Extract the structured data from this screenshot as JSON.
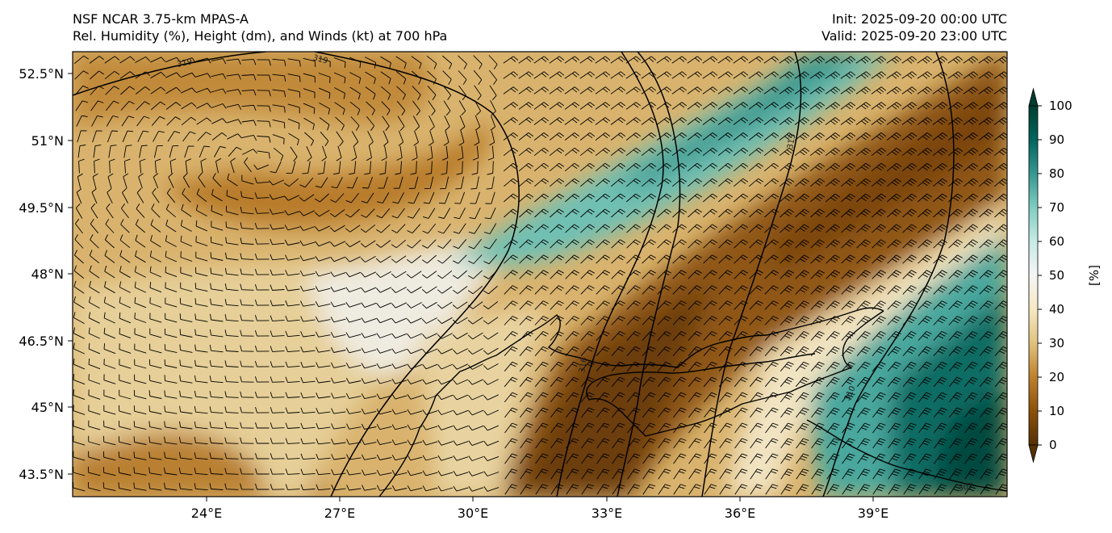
{
  "header": {
    "model": "NSF NCAR 3.75-km MPAS-A",
    "fields": "Rel. Humidity (%), Height (dm), and Winds (kt) at 700 hPa",
    "init": "Init: 2025-09-20 00:00 UTC",
    "valid": "Valid: 2025-09-20 23:00 UTC"
  },
  "map": {
    "lon_range": [
      21,
      42
    ],
    "lat_range": [
      43,
      53
    ],
    "lon_ticks": [
      "24°E",
      "27°E",
      "30°E",
      "33°E",
      "36°E",
      "39°E"
    ],
    "lat_ticks": [
      "52.5°N",
      "51°N",
      "49.5°N",
      "48°N",
      "46.5°N",
      "45°N",
      "43.5°N"
    ],
    "contour_labels": [
      "319",
      "319",
      "313",
      "316",
      "310",
      "307"
    ]
  },
  "colorbar": {
    "label": "[%]",
    "ticks": [
      "100",
      "90",
      "80",
      "70",
      "60",
      "50",
      "40",
      "30",
      "20",
      "10",
      "0"
    ],
    "colors": [
      "#543005",
      "#8c510a",
      "#bf812d",
      "#dfc27d",
      "#f6e8c3",
      "#f5f5f5",
      "#c7eae5",
      "#80cdc1",
      "#35978f",
      "#01665e",
      "#003c30"
    ]
  }
}
